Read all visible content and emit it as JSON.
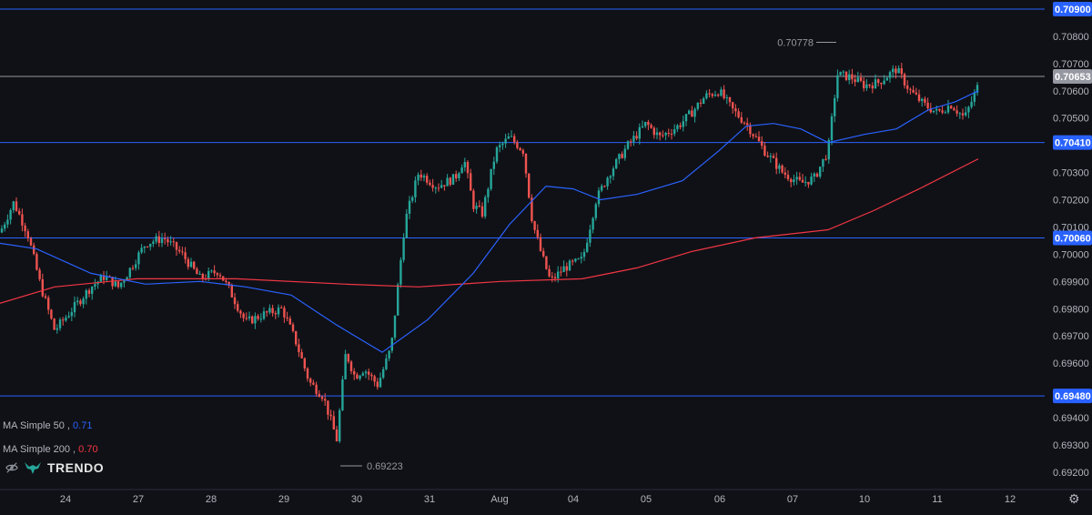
{
  "chart_data": {
    "type": "candlestick",
    "instrument_scale": {
      "ylim": [
        0.6915,
        0.70935
      ],
      "y_ticks": [
        "0.70800",
        "0.70700",
        "0.70600",
        "0.70500",
        "0.70300",
        "0.70200",
        "0.70100",
        "0.70000",
        "0.69900",
        "0.69800",
        "0.69700",
        "0.69600",
        "0.69400",
        "0.69300",
        "0.69200"
      ],
      "x_ticks": [
        "24",
        "27",
        "28",
        "29",
        "30",
        "31",
        "Aug",
        "04",
        "05",
        "06",
        "07",
        "10",
        "11",
        "12"
      ]
    },
    "horizontal_levels": [
      {
        "value": 0.709,
        "label": "0.70900",
        "color": "#2962ff"
      },
      {
        "value": 0.7041,
        "label": "0.70410",
        "color": "#2962ff"
      },
      {
        "value": 0.7006,
        "label": "0.70060",
        "color": "#2962ff"
      },
      {
        "value": 0.6948,
        "label": "0.69480",
        "color": "#2962ff"
      },
      {
        "value": 0.70653,
        "label": "0.70653",
        "color": "#9598a1"
      }
    ],
    "annotations": [
      {
        "text": "0.70778",
        "value": 0.70778
      },
      {
        "text": "0.69223",
        "value": 0.69223
      }
    ],
    "series": [
      {
        "name": "MA Simple 50",
        "value_label": "0.71",
        "color": "#2962ff"
      },
      {
        "name": "MA Simple 200",
        "value_label": "0.70",
        "color": "#f23645"
      }
    ],
    "ma200_path": [
      [
        0,
        0.6982
      ],
      [
        60,
        0.6988
      ],
      [
        150,
        0.6991
      ],
      [
        260,
        0.6991
      ],
      [
        380,
        0.6989
      ],
      [
        460,
        0.6988
      ],
      [
        550,
        0.699
      ],
      [
        640,
        0.6991
      ],
      [
        700,
        0.6995
      ],
      [
        760,
        0.7001
      ],
      [
        830,
        0.7006
      ],
      [
        910,
        0.7009
      ],
      [
        960,
        0.7016
      ],
      [
        1010,
        0.7024
      ],
      [
        1075,
        0.7035
      ]
    ],
    "ma50_path": [
      [
        0,
        0.7004
      ],
      [
        40,
        0.7002
      ],
      [
        100,
        0.6993
      ],
      [
        160,
        0.6989
      ],
      [
        220,
        0.699
      ],
      [
        270,
        0.6988
      ],
      [
        320,
        0.6985
      ],
      [
        370,
        0.6974
      ],
      [
        420,
        0.6964
      ],
      [
        470,
        0.6976
      ],
      [
        520,
        0.6993
      ],
      [
        560,
        0.7011
      ],
      [
        600,
        0.7025
      ],
      [
        630,
        0.7024
      ],
      [
        660,
        0.702
      ],
      [
        700,
        0.7022
      ],
      [
        750,
        0.7027
      ],
      [
        790,
        0.7038
      ],
      [
        820,
        0.7047
      ],
      [
        850,
        0.7048
      ],
      [
        880,
        0.7046
      ],
      [
        910,
        0.7041
      ],
      [
        950,
        0.7044
      ],
      [
        985,
        0.7046
      ],
      [
        1020,
        0.7053
      ],
      [
        1050,
        0.7056
      ],
      [
        1075,
        0.706
      ]
    ],
    "close_path": [
      [
        0,
        0.7008
      ],
      [
        15,
        0.7019
      ],
      [
        30,
        0.7008
      ],
      [
        45,
        0.6988
      ],
      [
        60,
        0.6972
      ],
      [
        80,
        0.698
      ],
      [
        100,
        0.6988
      ],
      [
        115,
        0.6992
      ],
      [
        130,
        0.6988
      ],
      [
        140,
        0.6993
      ],
      [
        160,
        0.7004
      ],
      [
        180,
        0.7006
      ],
      [
        200,
        0.7
      ],
      [
        220,
        0.6991
      ],
      [
        240,
        0.6994
      ],
      [
        255,
        0.6985
      ],
      [
        270,
        0.6975
      ],
      [
        290,
        0.6978
      ],
      [
        310,
        0.698
      ],
      [
        325,
        0.6968
      ],
      [
        340,
        0.6953
      ],
      [
        355,
        0.6948
      ],
      [
        370,
        0.6932
      ],
      [
        380,
        0.6964
      ],
      [
        390,
        0.6955
      ],
      [
        400,
        0.6958
      ],
      [
        415,
        0.6952
      ],
      [
        430,
        0.6966
      ],
      [
        445,
        0.7012
      ],
      [
        460,
        0.703
      ],
      [
        480,
        0.7025
      ],
      [
        500,
        0.7028
      ],
      [
        510,
        0.7035
      ],
      [
        520,
        0.7018
      ],
      [
        530,
        0.7015
      ],
      [
        545,
        0.7038
      ],
      [
        560,
        0.7043
      ],
      [
        575,
        0.7038
      ],
      [
        585,
        0.7012
      ],
      [
        595,
        0.7
      ],
      [
        605,
        0.699
      ],
      [
        620,
        0.6995
      ],
      [
        640,
        0.6998
      ],
      [
        655,
        0.702
      ],
      [
        670,
        0.703
      ],
      [
        690,
        0.704
      ],
      [
        710,
        0.7048
      ],
      [
        725,
        0.7043
      ],
      [
        745,
        0.7047
      ],
      [
        760,
        0.7052
      ],
      [
        775,
        0.7058
      ],
      [
        790,
        0.706
      ],
      [
        805,
        0.7053
      ],
      [
        820,
        0.7048
      ],
      [
        840,
        0.7038
      ],
      [
        860,
        0.703
      ],
      [
        880,
        0.7026
      ],
      [
        895,
        0.7028
      ],
      [
        910,
        0.7038
      ],
      [
        920,
        0.7066
      ],
      [
        935,
        0.7065
      ],
      [
        950,
        0.7062
      ],
      [
        965,
        0.7063
      ],
      [
        985,
        0.7068
      ],
      [
        1000,
        0.706
      ],
      [
        1015,
        0.7055
      ],
      [
        1030,
        0.7052
      ],
      [
        1045,
        0.7055
      ],
      [
        1060,
        0.705
      ],
      [
        1075,
        0.7062
      ]
    ]
  },
  "indicators": {
    "ma50_name": "MA Simple 50 ,",
    "ma50_value": "0.71",
    "ma200_name": "MA Simple 200 ,",
    "ma200_value": "0.70"
  },
  "branding": {
    "name": "TRENDO",
    "eye_icon": "eye-slash-icon",
    "logo_icon": "bull-icon"
  },
  "settings": {
    "icon": "gear-icon"
  },
  "colors": {
    "up": "#26a69a",
    "down": "#ef5350",
    "background": "#101116",
    "level": "#2962ff",
    "grid": "#1c1f26"
  }
}
